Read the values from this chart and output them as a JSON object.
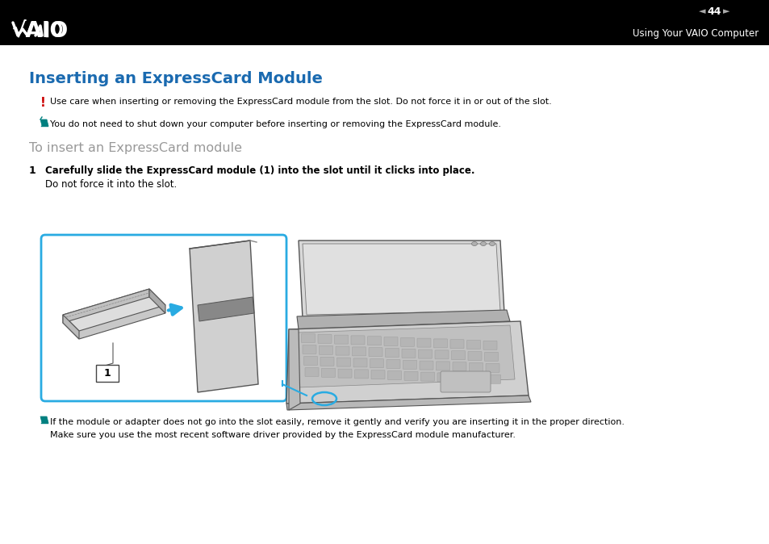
{
  "bg_color": "#ffffff",
  "header_bg": "#000000",
  "header_subtitle": "Using Your VAIO Computer",
  "header_page": "44",
  "title": "Inserting an ExpressCard Module",
  "title_color": "#1a6ab0",
  "warning_symbol": "!",
  "warning_symbol_color": "#cc0000",
  "warning_text": "Use care when inserting or removing the ExpressCard module from the slot. Do not force it in or out of the slot.",
  "note_text1": "You do not need to shut down your computer before inserting or removing the ExpressCard module.",
  "section_title": "To insert an ExpressCard module",
  "section_title_color": "#999999",
  "step_num": "1",
  "step1_bold": "Carefully slide the ExpressCard module (1) into the slot until it clicks into place.",
  "step1_normal": "Do not force it into the slot.",
  "note_text2": "If the module or adapter does not go into the slot easily, remove it gently and verify you are inserting it in the proper direction.",
  "note_text3": "Make sure you use the most recent software driver provided by the ExpressCard module manufacturer.",
  "box_color": "#29abe2",
  "arrow_color": "#29abe2",
  "text_color": "#000000",
  "teal": "#008080",
  "gray1": "#d0d0d0",
  "gray2": "#b8b8b8",
  "gray3": "#909090",
  "gray4": "#e8e8e8"
}
